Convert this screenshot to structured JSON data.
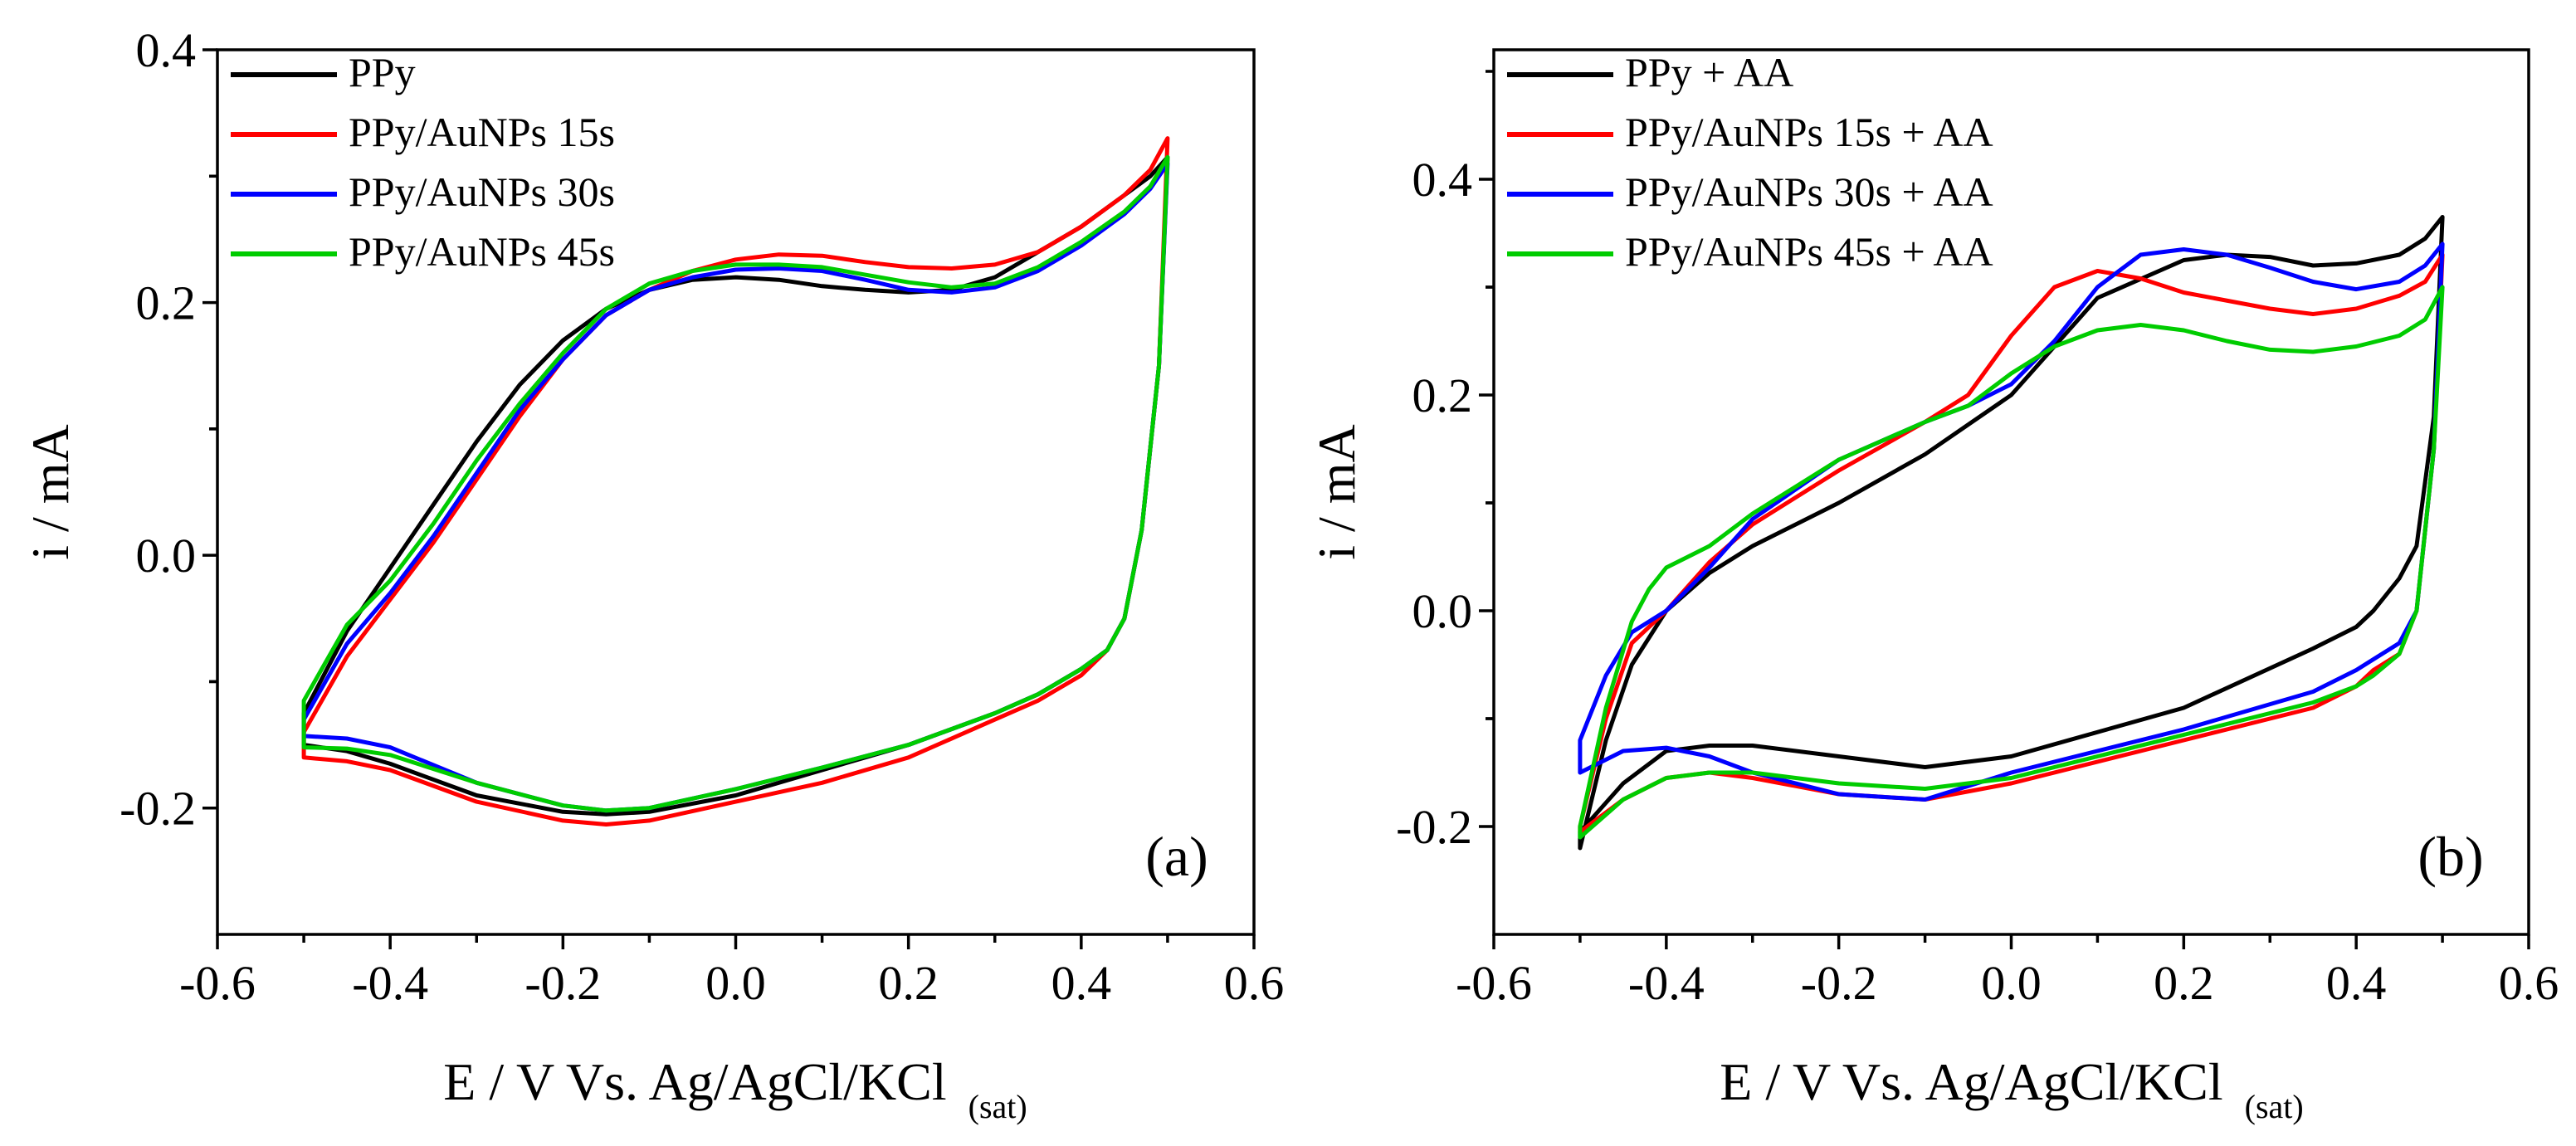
{
  "chart_data": [
    {
      "type": "line",
      "panel_label": "(a)",
      "xlabel": "E / V Vs. Ag/AgCl/KCl",
      "xlabel_subscript": "(sat)",
      "ylabel": "i / mA",
      "xlim": [
        -0.6,
        0.6
      ],
      "ylim": [
        -0.3,
        0.4
      ],
      "xticks": [
        -0.6,
        -0.4,
        -0.2,
        0.0,
        0.2,
        0.4,
        0.6
      ],
      "xtick_labels": [
        "-0.6",
        "-0.4",
        "-0.2",
        "0.0",
        "0.2",
        "0.4",
        "0.6"
      ],
      "yticks": [
        -0.2,
        0.0,
        0.2,
        0.4
      ],
      "ytick_labels": [
        "-0.2",
        "0.0",
        "0.2",
        "0.4"
      ],
      "legend_position": "top-left",
      "grid": false,
      "series": [
        {
          "name": "PPy",
          "color": "#000000",
          "x": [
            -0.5,
            -0.45,
            -0.4,
            -0.35,
            -0.3,
            -0.25,
            -0.2,
            -0.15,
            -0.1,
            -0.05,
            0.0,
            0.05,
            0.1,
            0.15,
            0.2,
            0.25,
            0.3,
            0.35,
            0.4,
            0.45,
            0.48,
            0.5,
            0.49,
            0.47,
            0.45,
            0.43,
            0.4,
            0.35,
            0.3,
            0.2,
            0.1,
            0.0,
            -0.1,
            -0.15,
            -0.2,
            -0.3,
            -0.4,
            -0.45,
            -0.5
          ],
          "y": [
            -0.125,
            -0.06,
            -0.01,
            0.04,
            0.09,
            0.135,
            0.17,
            0.195,
            0.21,
            0.218,
            0.22,
            0.218,
            0.213,
            0.21,
            0.208,
            0.21,
            0.22,
            0.24,
            0.26,
            0.285,
            0.3,
            0.315,
            0.15,
            0.02,
            -0.05,
            -0.075,
            -0.09,
            -0.11,
            -0.125,
            -0.15,
            -0.17,
            -0.19,
            -0.203,
            -0.205,
            -0.203,
            -0.19,
            -0.165,
            -0.155,
            -0.15
          ]
        },
        {
          "name": "PPy/AuNPs 15s",
          "color": "#ff0000",
          "x": [
            -0.5,
            -0.45,
            -0.4,
            -0.35,
            -0.3,
            -0.25,
            -0.2,
            -0.15,
            -0.1,
            -0.05,
            0.0,
            0.05,
            0.1,
            0.15,
            0.2,
            0.25,
            0.3,
            0.35,
            0.4,
            0.45,
            0.48,
            0.5,
            0.49,
            0.47,
            0.45,
            0.43,
            0.4,
            0.35,
            0.3,
            0.2,
            0.1,
            0.0,
            -0.1,
            -0.15,
            -0.2,
            -0.3,
            -0.4,
            -0.45,
            -0.5
          ],
          "y": [
            -0.14,
            -0.08,
            -0.035,
            0.01,
            0.06,
            0.11,
            0.155,
            0.19,
            0.21,
            0.225,
            0.234,
            0.238,
            0.237,
            0.232,
            0.228,
            0.227,
            0.23,
            0.24,
            0.26,
            0.285,
            0.305,
            0.33,
            0.15,
            0.02,
            -0.05,
            -0.075,
            -0.095,
            -0.115,
            -0.13,
            -0.16,
            -0.18,
            -0.195,
            -0.21,
            -0.213,
            -0.21,
            -0.195,
            -0.17,
            -0.163,
            -0.16
          ]
        },
        {
          "name": "PPy/AuNPs 30s",
          "color": "#0000ff",
          "x": [
            -0.5,
            -0.45,
            -0.4,
            -0.35,
            -0.3,
            -0.25,
            -0.2,
            -0.15,
            -0.1,
            -0.05,
            0.0,
            0.05,
            0.1,
            0.15,
            0.2,
            0.25,
            0.3,
            0.35,
            0.4,
            0.45,
            0.48,
            0.5,
            0.49,
            0.47,
            0.45,
            0.43,
            0.4,
            0.35,
            0.3,
            0.2,
            0.1,
            0.0,
            -0.1,
            -0.15,
            -0.2,
            -0.3,
            -0.4,
            -0.45,
            -0.5
          ],
          "y": [
            -0.13,
            -0.07,
            -0.03,
            0.015,
            0.065,
            0.115,
            0.155,
            0.19,
            0.21,
            0.22,
            0.226,
            0.227,
            0.225,
            0.218,
            0.21,
            0.208,
            0.212,
            0.225,
            0.245,
            0.27,
            0.29,
            0.31,
            0.15,
            0.02,
            -0.05,
            -0.075,
            -0.09,
            -0.11,
            -0.125,
            -0.15,
            -0.168,
            -0.185,
            -0.2,
            -0.202,
            -0.198,
            -0.18,
            -0.152,
            -0.145,
            -0.143
          ]
        },
        {
          "name": "PPy/AuNPs 45s",
          "color": "#00cc00",
          "x": [
            -0.5,
            -0.45,
            -0.4,
            -0.35,
            -0.3,
            -0.25,
            -0.2,
            -0.15,
            -0.1,
            -0.05,
            0.0,
            0.05,
            0.1,
            0.15,
            0.2,
            0.25,
            0.3,
            0.35,
            0.4,
            0.45,
            0.48,
            0.5,
            0.49,
            0.47,
            0.45,
            0.43,
            0.4,
            0.35,
            0.3,
            0.2,
            0.1,
            0.0,
            -0.1,
            -0.15,
            -0.2,
            -0.3,
            -0.4,
            -0.45,
            -0.5
          ],
          "y": [
            -0.115,
            -0.055,
            -0.02,
            0.025,
            0.075,
            0.12,
            0.16,
            0.195,
            0.215,
            0.225,
            0.23,
            0.23,
            0.228,
            0.222,
            0.216,
            0.212,
            0.215,
            0.228,
            0.248,
            0.272,
            0.292,
            0.315,
            0.15,
            0.02,
            -0.05,
            -0.075,
            -0.09,
            -0.11,
            -0.125,
            -0.15,
            -0.168,
            -0.185,
            -0.2,
            -0.202,
            -0.198,
            -0.18,
            -0.158,
            -0.153,
            -0.152
          ]
        }
      ]
    },
    {
      "type": "line",
      "panel_label": "(b)",
      "xlabel": "E / V Vs. Ag/AgCl/KCl",
      "xlabel_subscript": "(sat)",
      "ylabel": "i / mA",
      "xlim": [
        -0.6,
        0.6
      ],
      "ylim": [
        -0.3,
        0.52
      ],
      "xticks": [
        -0.6,
        -0.4,
        -0.2,
        0.0,
        0.2,
        0.4,
        0.6
      ],
      "xtick_labels": [
        "-0.6",
        "-0.4",
        "-0.2",
        "0.0",
        "0.2",
        "0.4",
        "0.6"
      ],
      "yticks": [
        -0.2,
        0.0,
        0.2,
        0.4
      ],
      "ytick_labels": [
        "-0.2",
        "0.0",
        "0.2",
        "0.4"
      ],
      "legend_position": "top-left",
      "grid": false,
      "series": [
        {
          "name": "PPy + AA",
          "color": "#000000",
          "x": [
            -0.5,
            -0.47,
            -0.44,
            -0.4,
            -0.35,
            -0.3,
            -0.2,
            -0.1,
            0.0,
            0.05,
            0.1,
            0.2,
            0.25,
            0.3,
            0.35,
            0.4,
            0.45,
            0.48,
            0.5,
            0.49,
            0.47,
            0.45,
            0.42,
            0.4,
            0.35,
            0.2,
            0.0,
            -0.1,
            -0.2,
            -0.3,
            -0.35,
            -0.4,
            -0.45,
            -0.5
          ],
          "y": [
            -0.22,
            -0.12,
            -0.05,
            0.0,
            0.035,
            0.06,
            0.1,
            0.145,
            0.2,
            0.245,
            0.29,
            0.325,
            0.33,
            0.328,
            0.32,
            0.322,
            0.33,
            0.345,
            0.365,
            0.18,
            0.06,
            0.03,
            0.0,
            -0.015,
            -0.035,
            -0.09,
            -0.135,
            -0.145,
            -0.135,
            -0.125,
            -0.125,
            -0.13,
            -0.16,
            -0.205
          ]
        },
        {
          "name": "PPy/AuNPs 15s + AA",
          "color": "#ff0000",
          "x": [
            -0.5,
            -0.47,
            -0.44,
            -0.4,
            -0.35,
            -0.3,
            -0.2,
            -0.1,
            -0.05,
            0.0,
            0.05,
            0.1,
            0.15,
            0.2,
            0.3,
            0.35,
            0.4,
            0.45,
            0.48,
            0.5,
            0.49,
            0.47,
            0.45,
            0.42,
            0.4,
            0.35,
            0.2,
            0.0,
            -0.1,
            -0.2,
            -0.3,
            -0.35,
            -0.4,
            -0.45,
            -0.5
          ],
          "y": [
            -0.2,
            -0.1,
            -0.03,
            0.0,
            0.045,
            0.08,
            0.13,
            0.175,
            0.2,
            0.255,
            0.3,
            0.315,
            0.308,
            0.295,
            0.28,
            0.275,
            0.28,
            0.292,
            0.305,
            0.33,
            0.15,
            0.0,
            -0.04,
            -0.055,
            -0.07,
            -0.09,
            -0.12,
            -0.16,
            -0.175,
            -0.17,
            -0.155,
            -0.15,
            -0.155,
            -0.175,
            -0.205
          ]
        },
        {
          "name": "PPy/AuNPs 30s + AA",
          "color": "#0000ff",
          "x": [
            -0.5,
            -0.47,
            -0.44,
            -0.4,
            -0.35,
            -0.3,
            -0.2,
            -0.1,
            -0.05,
            0.0,
            0.05,
            0.1,
            0.15,
            0.2,
            0.25,
            0.3,
            0.35,
            0.4,
            0.45,
            0.48,
            0.5,
            0.49,
            0.47,
            0.45,
            0.42,
            0.4,
            0.35,
            0.2,
            0.0,
            -0.1,
            -0.2,
            -0.3,
            -0.35,
            -0.4,
            -0.45,
            -0.5
          ],
          "y": [
            -0.12,
            -0.06,
            -0.02,
            0.0,
            0.04,
            0.085,
            0.14,
            0.175,
            0.19,
            0.21,
            0.25,
            0.3,
            0.33,
            0.335,
            0.33,
            0.318,
            0.305,
            0.298,
            0.305,
            0.32,
            0.34,
            0.15,
            0.0,
            -0.03,
            -0.045,
            -0.055,
            -0.075,
            -0.11,
            -0.15,
            -0.175,
            -0.17,
            -0.15,
            -0.135,
            -0.127,
            -0.13,
            -0.15
          ]
        },
        {
          "name": "PPy/AuNPs 45s + AA",
          "color": "#00cc00",
          "x": [
            -0.5,
            -0.47,
            -0.44,
            -0.42,
            -0.4,
            -0.35,
            -0.3,
            -0.2,
            -0.1,
            -0.05,
            0.0,
            0.05,
            0.1,
            0.15,
            0.2,
            0.25,
            0.3,
            0.35,
            0.4,
            0.45,
            0.48,
            0.5,
            0.49,
            0.47,
            0.45,
            0.42,
            0.4,
            0.35,
            0.2,
            0.0,
            -0.1,
            -0.2,
            -0.3,
            -0.35,
            -0.4,
            -0.45,
            -0.5
          ],
          "y": [
            -0.2,
            -0.09,
            -0.01,
            0.02,
            0.04,
            0.06,
            0.09,
            0.14,
            0.175,
            0.19,
            0.22,
            0.245,
            0.26,
            0.265,
            0.26,
            0.25,
            0.242,
            0.24,
            0.245,
            0.255,
            0.27,
            0.3,
            0.15,
            0.0,
            -0.04,
            -0.06,
            -0.07,
            -0.085,
            -0.115,
            -0.155,
            -0.165,
            -0.16,
            -0.15,
            -0.15,
            -0.155,
            -0.175,
            -0.21
          ]
        }
      ]
    }
  ]
}
